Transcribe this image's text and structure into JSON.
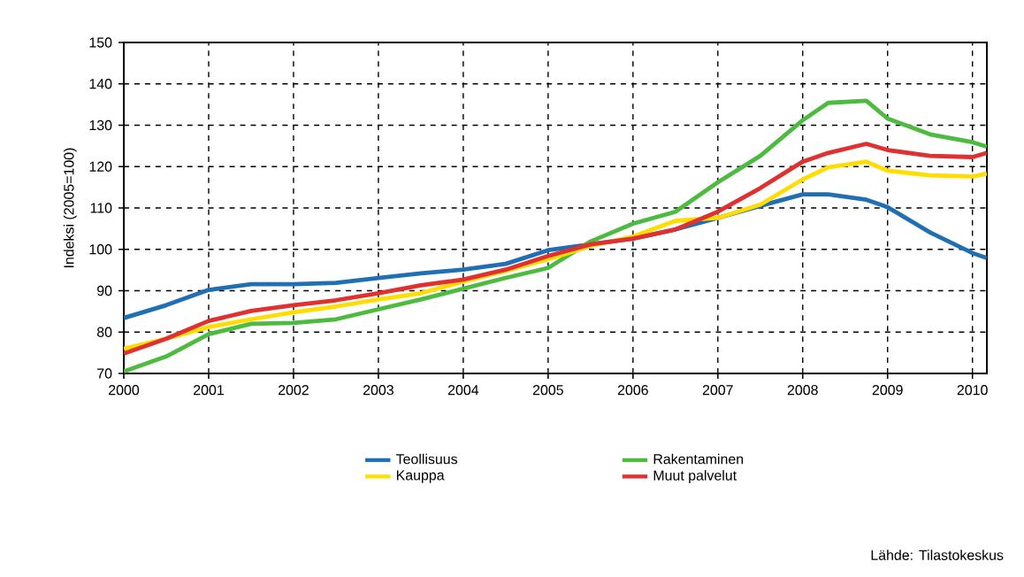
{
  "chart_data": {
    "type": "line",
    "ylabel": "Indeksi (2005=100)",
    "annotations": [
      "Lähde: Tilastokeskus"
    ],
    "xlim": [
      2000,
      2010.17
    ],
    "xticks": [
      2000,
      2001,
      2002,
      2003,
      2004,
      2005,
      2006,
      2007,
      2008,
      2009,
      2010
    ],
    "ylim": [
      70,
      150
    ],
    "yticks": [
      70,
      80,
      90,
      100,
      110,
      120,
      130,
      140,
      150
    ],
    "grid": true,
    "legend": "bottom",
    "marker": "none",
    "line_style": "solid",
    "x": [
      2000,
      2000.5,
      2001,
      2001.5,
      2002,
      2002.5,
      2003,
      2003.5,
      2004,
      2004.5,
      2005,
      2005.5,
      2006,
      2006.5,
      2007,
      2007.5,
      2008,
      2008.3,
      2008.75,
      2009,
      2009.5,
      2010,
      2010.17
    ],
    "series": [
      {
        "name": "Teollisuus",
        "color": "#1f6fb5",
        "values": [
          83.4,
          86.5,
          90.2,
          91.6,
          91.6,
          91.9,
          93.1,
          94.2,
          95.1,
          96.5,
          99.8,
          101.2,
          102.6,
          104.8,
          107.6,
          110.5,
          113.3,
          113.3,
          112,
          110.2,
          104.1,
          99.1,
          97.9
        ]
      },
      {
        "name": "Rakentaminen",
        "color": "#4cbb3f",
        "values": [
          70.5,
          74.1,
          79.5,
          82,
          82.2,
          83.1,
          85.5,
          87.9,
          90.5,
          93.1,
          95.5,
          101.9,
          106.2,
          109.1,
          116.2,
          122.6,
          131.2,
          135.4,
          135.9,
          131.6,
          127.8,
          125.9,
          124.8
        ]
      },
      {
        "name": "Kauppa",
        "color": "#ffdd00",
        "values": [
          76,
          78.4,
          81.2,
          83.1,
          84.8,
          86.2,
          87.9,
          89.4,
          92.2,
          94.8,
          97.6,
          100.8,
          103.1,
          106.9,
          107.6,
          110.8,
          116.9,
          119.8,
          121.2,
          119,
          117.9,
          117.6,
          118.3
        ]
      },
      {
        "name": "Muut palvelut",
        "color": "#e03030",
        "values": [
          74.8,
          78.4,
          82.7,
          85.1,
          86.5,
          87.7,
          89.4,
          91.3,
          92.7,
          95.1,
          98.4,
          101.2,
          102.6,
          104.8,
          109.1,
          114.8,
          121.2,
          123.3,
          125.5,
          124,
          122.6,
          122.3,
          123.3
        ]
      }
    ]
  }
}
